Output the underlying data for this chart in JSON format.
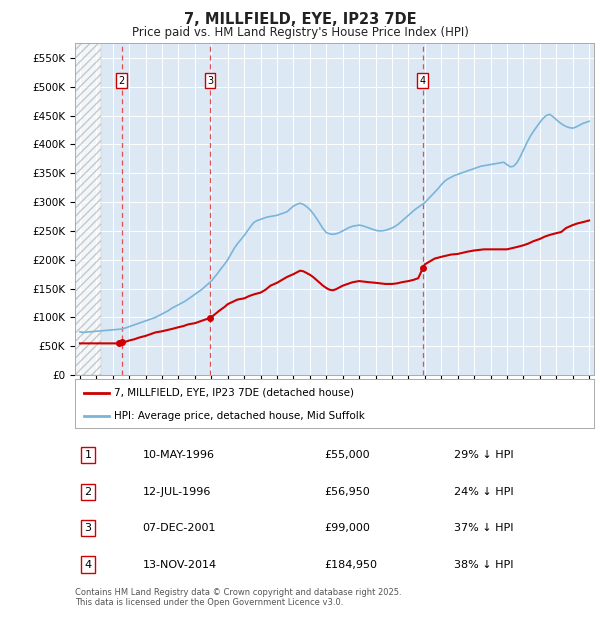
{
  "title": "7, MILLFIELD, EYE, IP23 7DE",
  "subtitle": "Price paid vs. HM Land Registry's House Price Index (HPI)",
  "ylabel_ticks": [
    "£0",
    "£50K",
    "£100K",
    "£150K",
    "£200K",
    "£250K",
    "£300K",
    "£350K",
    "£400K",
    "£450K",
    "£500K",
    "£550K"
  ],
  "ytick_values": [
    0,
    50000,
    100000,
    150000,
    200000,
    250000,
    300000,
    350000,
    400000,
    450000,
    500000,
    550000
  ],
  "ylim": [
    0,
    575000
  ],
  "xmin": 1993.7,
  "xmax": 2025.3,
  "background_color": "#dce9f5",
  "hatch_region_xmax": 1995.3,
  "purchases": [
    {
      "label": "1",
      "date": "10-MAY-1996",
      "x": 1996.36,
      "price": 55000,
      "pct": "29% ↓ HPI"
    },
    {
      "label": "2",
      "date": "12-JUL-1996",
      "x": 1996.55,
      "price": 56950,
      "pct": "24% ↓ HPI"
    },
    {
      "label": "3",
      "date": "07-DEC-2001",
      "x": 2001.92,
      "price": 99000,
      "pct": "37% ↓ HPI"
    },
    {
      "label": "4",
      "date": "13-NOV-2014",
      "x": 2014.87,
      "price": 184950,
      "pct": "38% ↓ HPI"
    }
  ],
  "hpi_line_color": "#7ab4d8",
  "price_line_color": "#cc0000",
  "vline_color": "#e05050",
  "legend_label_red": "7, MILLFIELD, EYE, IP23 7DE (detached house)",
  "legend_label_blue": "HPI: Average price, detached house, Mid Suffolk",
  "footer": "Contains HM Land Registry data © Crown copyright and database right 2025.\nThis data is licensed under the Open Government Licence v3.0.",
  "hpi_data_x": [
    1994.0,
    1994.2,
    1994.4,
    1994.6,
    1994.8,
    1995.0,
    1995.2,
    1995.4,
    1995.6,
    1995.8,
    1996.0,
    1996.2,
    1996.4,
    1996.6,
    1996.8,
    1997.0,
    1997.2,
    1997.4,
    1997.6,
    1997.8,
    1998.0,
    1998.2,
    1998.4,
    1998.6,
    1998.8,
    1999.0,
    1999.2,
    1999.4,
    1999.6,
    1999.8,
    2000.0,
    2000.2,
    2000.4,
    2000.6,
    2000.8,
    2001.0,
    2001.2,
    2001.4,
    2001.6,
    2001.8,
    2002.0,
    2002.2,
    2002.4,
    2002.6,
    2002.8,
    2003.0,
    2003.2,
    2003.4,
    2003.6,
    2003.8,
    2004.0,
    2004.2,
    2004.4,
    2004.6,
    2004.8,
    2005.0,
    2005.2,
    2005.4,
    2005.6,
    2005.8,
    2006.0,
    2006.2,
    2006.4,
    2006.6,
    2006.8,
    2007.0,
    2007.2,
    2007.4,
    2007.6,
    2007.8,
    2008.0,
    2008.2,
    2008.4,
    2008.6,
    2008.8,
    2009.0,
    2009.2,
    2009.4,
    2009.6,
    2009.8,
    2010.0,
    2010.2,
    2010.4,
    2010.6,
    2010.8,
    2011.0,
    2011.2,
    2011.4,
    2011.6,
    2011.8,
    2012.0,
    2012.2,
    2012.4,
    2012.6,
    2012.8,
    2013.0,
    2013.2,
    2013.4,
    2013.6,
    2013.8,
    2014.0,
    2014.2,
    2014.4,
    2014.6,
    2014.8,
    2015.0,
    2015.2,
    2015.4,
    2015.6,
    2015.8,
    2016.0,
    2016.2,
    2016.4,
    2016.6,
    2016.8,
    2017.0,
    2017.2,
    2017.4,
    2017.6,
    2017.8,
    2018.0,
    2018.2,
    2018.4,
    2018.6,
    2018.8,
    2019.0,
    2019.2,
    2019.4,
    2019.6,
    2019.8,
    2020.0,
    2020.2,
    2020.4,
    2020.6,
    2020.8,
    2021.0,
    2021.2,
    2021.4,
    2021.6,
    2021.8,
    2022.0,
    2022.2,
    2022.4,
    2022.6,
    2022.8,
    2023.0,
    2023.2,
    2023.4,
    2023.6,
    2023.8,
    2024.0,
    2024.2,
    2024.4,
    2024.6,
    2024.8,
    2025.0
  ],
  "hpi_data_y": [
    75000,
    74000,
    74500,
    75000,
    75500,
    76000,
    76500,
    77000,
    77500,
    78000,
    78500,
    79000,
    79500,
    80000,
    82000,
    84000,
    86000,
    88000,
    90000,
    92000,
    94000,
    96000,
    98000,
    100000,
    103000,
    106000,
    109000,
    112000,
    116000,
    119000,
    122000,
    125000,
    128000,
    132000,
    136000,
    140000,
    144000,
    148000,
    153000,
    158000,
    163000,
    170000,
    177000,
    185000,
    192000,
    200000,
    210000,
    220000,
    228000,
    235000,
    242000,
    250000,
    258000,
    265000,
    268000,
    270000,
    272000,
    274000,
    275000,
    276000,
    277000,
    279000,
    281000,
    283000,
    288000,
    293000,
    296000,
    298000,
    296000,
    292000,
    287000,
    280000,
    272000,
    263000,
    254000,
    247000,
    245000,
    244000,
    245000,
    247000,
    250000,
    253000,
    256000,
    258000,
    259000,
    260000,
    259000,
    257000,
    255000,
    253000,
    251000,
    250000,
    250000,
    251000,
    253000,
    255000,
    258000,
    262000,
    267000,
    272000,
    277000,
    282000,
    287000,
    291000,
    295000,
    299000,
    305000,
    311000,
    317000,
    323000,
    330000,
    336000,
    340000,
    343000,
    346000,
    348000,
    350000,
    352000,
    354000,
    356000,
    358000,
    360000,
    362000,
    363000,
    364000,
    365000,
    366000,
    367000,
    368000,
    369000,
    365000,
    361000,
    362000,
    368000,
    378000,
    390000,
    402000,
    413000,
    422000,
    430000,
    438000,
    445000,
    450000,
    452000,
    448000,
    443000,
    438000,
    434000,
    431000,
    429000,
    428000,
    430000,
    433000,
    436000,
    438000,
    440000
  ],
  "price_data_x": [
    1994.0,
    1994.5,
    1995.0,
    1995.5,
    1996.1,
    1996.36,
    1996.55,
    1996.8,
    1997.0,
    1997.3,
    1997.6,
    1998.0,
    1998.3,
    1998.6,
    1999.0,
    1999.3,
    1999.6,
    2000.0,
    2000.3,
    2000.6,
    2001.0,
    2001.3,
    2001.6,
    2001.92,
    2002.2,
    2002.5,
    2002.8,
    2003.0,
    2003.3,
    2003.6,
    2004.0,
    2004.3,
    2004.6,
    2005.0,
    2005.3,
    2005.6,
    2006.0,
    2006.3,
    2006.6,
    2007.0,
    2007.2,
    2007.4,
    2007.6,
    2007.8,
    2008.0,
    2008.2,
    2008.4,
    2008.6,
    2008.8,
    2009.0,
    2009.2,
    2009.4,
    2009.6,
    2009.8,
    2010.0,
    2010.3,
    2010.6,
    2011.0,
    2011.3,
    2011.6,
    2012.0,
    2012.3,
    2012.6,
    2013.0,
    2013.3,
    2013.6,
    2014.0,
    2014.3,
    2014.6,
    2014.87,
    2015.0,
    2015.3,
    2015.6,
    2016.0,
    2016.3,
    2016.6,
    2017.0,
    2017.3,
    2017.6,
    2018.0,
    2018.3,
    2018.6,
    2019.0,
    2019.3,
    2019.6,
    2020.0,
    2020.3,
    2020.6,
    2021.0,
    2021.3,
    2021.6,
    2022.0,
    2022.3,
    2022.6,
    2023.0,
    2023.3,
    2023.6,
    2024.0,
    2024.3,
    2024.6,
    2025.0
  ],
  "price_data_y": [
    55000,
    55000,
    55000,
    55000,
    55000,
    55000,
    56950,
    58000,
    60000,
    62000,
    65000,
    68000,
    71000,
    74000,
    76000,
    78000,
    80000,
    83000,
    85000,
    88000,
    90000,
    93000,
    96000,
    99000,
    105000,
    112000,
    118000,
    123000,
    127000,
    131000,
    133000,
    137000,
    140000,
    143000,
    148000,
    155000,
    160000,
    165000,
    170000,
    175000,
    178000,
    181000,
    180000,
    177000,
    174000,
    170000,
    165000,
    160000,
    155000,
    151000,
    148000,
    147000,
    149000,
    152000,
    155000,
    158000,
    161000,
    163000,
    162000,
    161000,
    160000,
    159000,
    158000,
    158000,
    159000,
    161000,
    163000,
    165000,
    168000,
    184950,
    192000,
    197000,
    202000,
    205000,
    207000,
    209000,
    210000,
    212000,
    214000,
    216000,
    217000,
    218000,
    218000,
    218000,
    218000,
    218000,
    220000,
    222000,
    225000,
    228000,
    232000,
    236000,
    240000,
    243000,
    246000,
    248000,
    255000,
    260000,
    263000,
    265000,
    268000
  ]
}
